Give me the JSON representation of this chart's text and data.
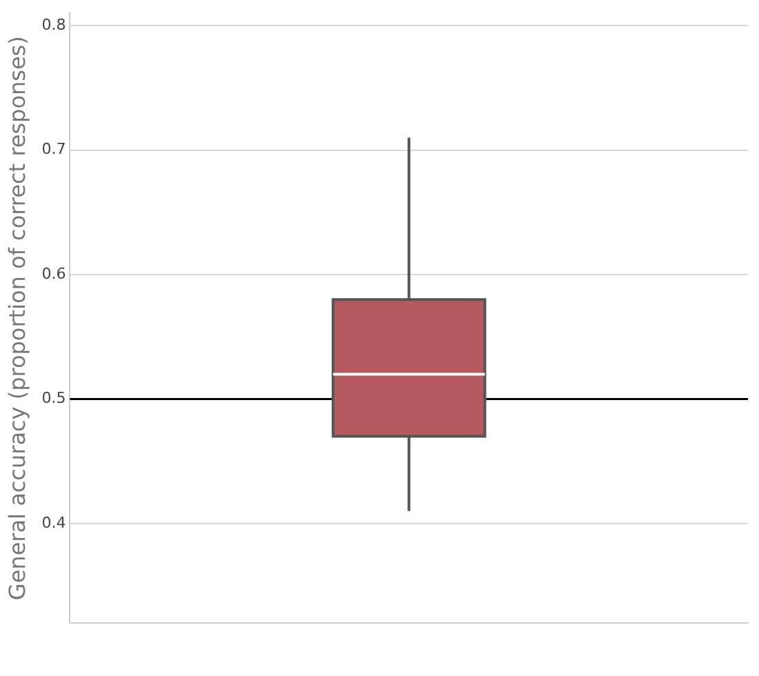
{
  "chart_data": {
    "type": "box",
    "ylabel": "General accuracy (proportion of correct responses)",
    "categories": [
      null
    ],
    "series": [
      {
        "color": "#b55a5e",
        "boxes": [
          {
            "low": 0.41,
            "q1": 0.47,
            "median": 0.52,
            "q3": 0.58,
            "high": 0.71
          }
        ]
      }
    ],
    "ylim": [
      0.32,
      0.81
    ],
    "yticks": [
      0.4,
      0.5,
      0.6,
      0.7,
      0.8
    ],
    "grid": "y",
    "ref_lines": [
      {
        "axis": "y",
        "value": 0.5,
        "color": "#000000"
      }
    ],
    "legend": false
  }
}
